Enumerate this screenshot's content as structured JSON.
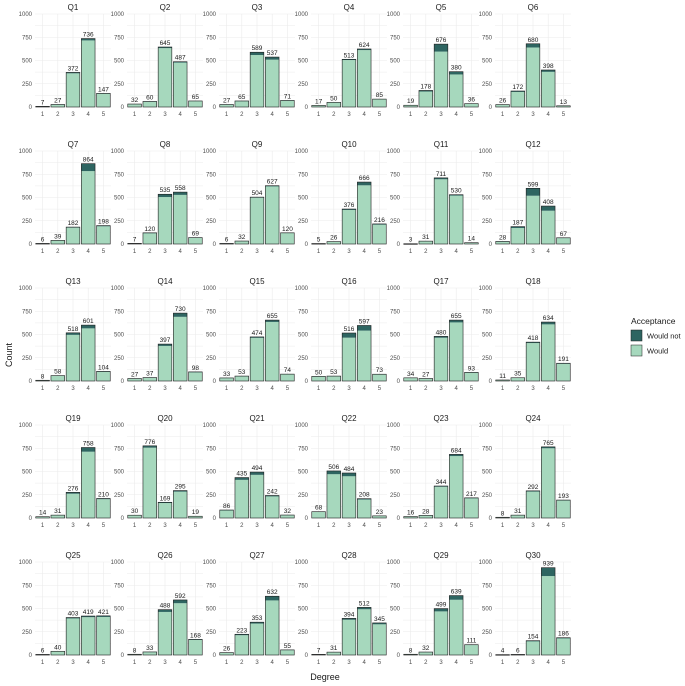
{
  "chart_data": {
    "type": "bar",
    "stacked": true,
    "facet_layout": {
      "columns": 6,
      "rows": 5
    },
    "xlabel": "Degree",
    "ylabel": "Count",
    "x_categories": [
      "1",
      "2",
      "3",
      "4",
      "5"
    ],
    "y_ticks": [
      "0",
      "250",
      "500",
      "750",
      "1000"
    ],
    "ylim": [
      0,
      1000
    ],
    "grid": true,
    "legend": {
      "title": "Acceptance",
      "position": "right",
      "entries": [
        {
          "name": "Would not",
          "color": "#2e6561"
        },
        {
          "name": "Would",
          "color": "#a6d8bd"
        }
      ]
    },
    "colors": {
      "would_not": "#2e6561",
      "would": "#a6d8bd",
      "outline": "#1f1f1f"
    },
    "panels": [
      {
        "title": "Q1",
        "totals": [
          7,
          27,
          372,
          736,
          147
        ],
        "would_not": [
          4,
          3,
          10,
          20,
          4
        ]
      },
      {
        "title": "Q2",
        "totals": [
          32,
          60,
          645,
          487,
          65
        ],
        "would_not": [
          2,
          3,
          12,
          10,
          2
        ]
      },
      {
        "title": "Q3",
        "totals": [
          27,
          65,
          589,
          537,
          71
        ],
        "would_not": [
          2,
          3,
          30,
          28,
          3
        ]
      },
      {
        "title": "Q4",
        "totals": [
          17,
          50,
          513,
          624,
          85
        ],
        "would_not": [
          1,
          2,
          8,
          12,
          2
        ]
      },
      {
        "title": "Q5",
        "totals": [
          19,
          178,
          676,
          380,
          36
        ],
        "would_not": [
          3,
          12,
          80,
          30,
          4
        ]
      },
      {
        "title": "Q6",
        "totals": [
          26,
          172,
          680,
          398,
          13
        ],
        "would_not": [
          2,
          10,
          40,
          20,
          1
        ]
      },
      {
        "title": "Q7",
        "totals": [
          6,
          39,
          182,
          864,
          198
        ],
        "would_not": [
          1,
          2,
          6,
          80,
          8
        ]
      },
      {
        "title": "Q8",
        "totals": [
          7,
          120,
          535,
          558,
          69
        ],
        "would_not": [
          1,
          5,
          30,
          30,
          3
        ]
      },
      {
        "title": "Q9",
        "totals": [
          6,
          32,
          504,
          627,
          120
        ],
        "would_not": [
          1,
          2,
          6,
          8,
          3
        ]
      },
      {
        "title": "Q10",
        "totals": [
          5,
          26,
          376,
          666,
          216
        ],
        "would_not": [
          1,
          2,
          10,
          35,
          8
        ]
      },
      {
        "title": "Q11",
        "totals": [
          3,
          31,
          711,
          530,
          14
        ],
        "would_not": [
          1,
          2,
          15,
          10,
          1
        ]
      },
      {
        "title": "Q12",
        "totals": [
          28,
          187,
          599,
          408,
          67
        ],
        "would_not": [
          3,
          15,
          80,
          50,
          4
        ]
      },
      {
        "title": "Q13",
        "totals": [
          8,
          58,
          518,
          601,
          104
        ],
        "would_not": [
          1,
          3,
          22,
          35,
          5
        ]
      },
      {
        "title": "Q14",
        "totals": [
          27,
          37,
          397,
          730,
          98
        ],
        "would_not": [
          2,
          3,
          20,
          40,
          5
        ]
      },
      {
        "title": "Q15",
        "totals": [
          33,
          53,
          474,
          655,
          74
        ],
        "would_not": [
          2,
          3,
          10,
          20,
          3
        ]
      },
      {
        "title": "Q16",
        "totals": [
          50,
          53,
          516,
          597,
          73
        ],
        "would_not": [
          3,
          3,
          50,
          55,
          4
        ]
      },
      {
        "title": "Q17",
        "totals": [
          34,
          27,
          480,
          655,
          93
        ],
        "would_not": [
          2,
          2,
          15,
          25,
          4
        ]
      },
      {
        "title": "Q18",
        "totals": [
          11,
          35,
          418,
          634,
          191
        ],
        "would_not": [
          1,
          2,
          10,
          25,
          6
        ]
      },
      {
        "title": "Q19",
        "totals": [
          14,
          31,
          276,
          758,
          210
        ],
        "would_not": [
          2,
          2,
          15,
          45,
          8
        ]
      },
      {
        "title": "Q20",
        "totals": [
          30,
          776,
          169,
          295,
          19
        ],
        "would_not": [
          2,
          20,
          8,
          12,
          1
        ]
      },
      {
        "title": "Q21",
        "totals": [
          86,
          435,
          494,
          242,
          32
        ],
        "would_not": [
          5,
          25,
          30,
          10,
          2
        ]
      },
      {
        "title": "Q22",
        "totals": [
          68,
          506,
          484,
          208,
          23
        ],
        "would_not": [
          4,
          35,
          35,
          10,
          1
        ]
      },
      {
        "title": "Q23",
        "totals": [
          16,
          28,
          344,
          684,
          217
        ],
        "would_not": [
          1,
          2,
          8,
          18,
          6
        ]
      },
      {
        "title": "Q24",
        "totals": [
          8,
          31,
          292,
          765,
          193
        ],
        "would_not": [
          1,
          2,
          8,
          15,
          5
        ]
      },
      {
        "title": "Q25",
        "totals": [
          6,
          40,
          403,
          419,
          421
        ],
        "would_not": [
          1,
          2,
          10,
          12,
          12
        ]
      },
      {
        "title": "Q26",
        "totals": [
          8,
          33,
          488,
          592,
          168
        ],
        "would_not": [
          1,
          2,
          25,
          35,
          6
        ]
      },
      {
        "title": "Q27",
        "totals": [
          26,
          223,
          353,
          632,
          55
        ],
        "would_not": [
          2,
          10,
          15,
          45,
          3
        ]
      },
      {
        "title": "Q28",
        "totals": [
          7,
          31,
          394,
          512,
          345
        ],
        "would_not": [
          1,
          2,
          15,
          20,
          15
        ]
      },
      {
        "title": "Q29",
        "totals": [
          8,
          32,
          499,
          639,
          111
        ],
        "would_not": [
          1,
          2,
          30,
          45,
          5
        ]
      },
      {
        "title": "Q30",
        "totals": [
          4,
          6,
          154,
          939,
          186
        ],
        "would_not": [
          1,
          1,
          8,
          90,
          8
        ]
      }
    ]
  }
}
